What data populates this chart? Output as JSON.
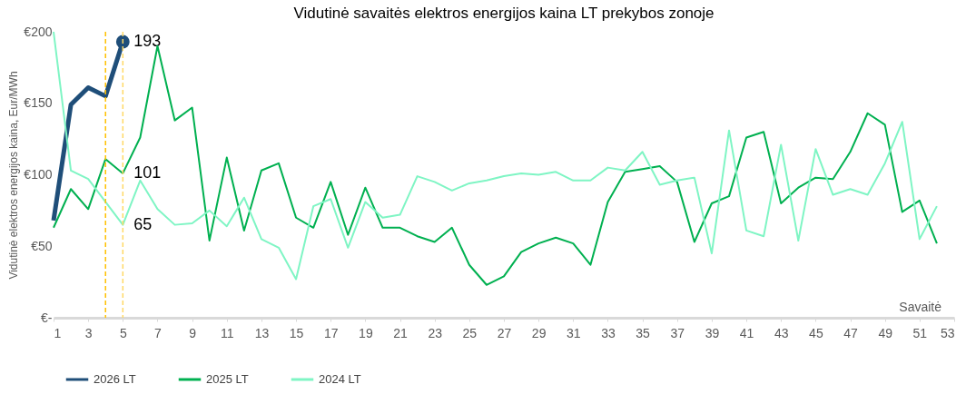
{
  "chart_data": {
    "type": "line",
    "title": "Vidutinė savaitės elektros energijos kaina LT prekybos zonoje",
    "xlabel": "Savaitė",
    "ylabel": "Vidutinė elektros energijos kaina, Eur/MWh",
    "xlim": [
      1,
      53
    ],
    "xticks": [
      1,
      3,
      5,
      7,
      9,
      11,
      13,
      15,
      17,
      19,
      21,
      23,
      25,
      27,
      29,
      31,
      33,
      35,
      37,
      39,
      41,
      43,
      45,
      47,
      49,
      51,
      53
    ],
    "ylim": [
      0,
      200
    ],
    "yticks": [
      {
        "value": 0,
        "label": "€-"
      },
      {
        "value": 50,
        "label": "€50"
      },
      {
        "value": 100,
        "label": "€100"
      },
      {
        "value": 150,
        "label": "€150"
      },
      {
        "value": 200,
        "label": "€200"
      }
    ],
    "grid": false,
    "legend": "bottom",
    "line_style": "solid",
    "ref_lines": [
      {
        "axis": "x",
        "value": 4,
        "label": null,
        "color": "#ffc000",
        "line_style": "dashed"
      },
      {
        "axis": "x",
        "value": 5,
        "label": null,
        "color": "#ffd966",
        "line_style": "dashed"
      }
    ],
    "series": [
      {
        "name": "2026 LT",
        "color": "#1f4e79",
        "marker": "none",
        "x": [
          1,
          2,
          3,
          4,
          5
        ],
        "values": [
          68,
          149,
          161,
          155,
          193
        ]
      },
      {
        "type": "scatter",
        "color": "#1f4e79",
        "marker": "circle",
        "x": [
          5
        ],
        "values": [
          193
        ],
        "value_labels": [
          "193"
        ]
      },
      {
        "name": "2025 LT",
        "color": "#00b050",
        "marker": "none",
        "x": [
          1,
          2,
          3,
          4,
          5,
          6,
          7,
          8,
          9,
          10,
          11,
          12,
          13,
          14,
          15,
          16,
          17,
          18,
          19,
          20,
          21,
          22,
          23,
          24,
          25,
          26,
          27,
          28,
          29,
          30,
          31,
          32,
          33,
          34,
          35,
          36,
          37,
          38,
          39,
          40,
          41,
          42,
          43,
          44,
          45,
          46,
          47,
          48,
          49,
          50,
          51,
          52
        ],
        "values": [
          63,
          90,
          76,
          111,
          101,
          126,
          190,
          138,
          147,
          54,
          112,
          61,
          103,
          108,
          70,
          63,
          95,
          58,
          91,
          63,
          63,
          57,
          53,
          63,
          37,
          23,
          29,
          46,
          52,
          56,
          52,
          37,
          81,
          102,
          104,
          106,
          95,
          53,
          80,
          85,
          126,
          130,
          80,
          91,
          98,
          97,
          116,
          143,
          135,
          74,
          82,
          52
        ],
        "value_labels": [
          null,
          null,
          null,
          null,
          "101",
          null,
          null,
          null,
          null,
          null,
          null,
          null,
          null,
          null,
          null,
          null,
          null,
          null,
          null,
          null,
          null,
          null,
          null,
          null,
          null,
          null,
          null,
          null,
          null,
          null,
          null,
          null,
          null,
          null,
          null,
          null,
          null,
          null,
          null,
          null,
          null,
          null,
          null,
          null,
          null,
          null,
          null,
          null,
          null,
          null,
          null,
          null
        ]
      },
      {
        "name": "2024 LT",
        "color": "#7ff5c4",
        "marker": "none",
        "x": [
          1,
          2,
          3,
          4,
          5,
          6,
          7,
          8,
          9,
          10,
          11,
          12,
          13,
          14,
          15,
          16,
          17,
          18,
          19,
          20,
          21,
          22,
          23,
          24,
          25,
          26,
          27,
          28,
          29,
          30,
          31,
          32,
          33,
          34,
          35,
          36,
          37,
          38,
          39,
          40,
          41,
          42,
          43,
          44,
          45,
          46,
          47,
          48,
          49,
          50,
          51,
          52
        ],
        "values": [
          200,
          103,
          97,
          81,
          65,
          96,
          76,
          65,
          66,
          75,
          64,
          84,
          55,
          49,
          27,
          78,
          83,
          49,
          81,
          70,
          72,
          99,
          95,
          89,
          94,
          96,
          99,
          101,
          100,
          102,
          96,
          96,
          105,
          103,
          116,
          93,
          96,
          98,
          45,
          131,
          61,
          57,
          121,
          54,
          118,
          86,
          90,
          86,
          108,
          137,
          55,
          78
        ],
        "value_labels": [
          null,
          null,
          null,
          null,
          "65",
          null,
          null,
          null,
          null,
          null,
          null,
          null,
          null,
          null,
          null,
          null,
          null,
          null,
          null,
          null,
          null,
          null,
          null,
          null,
          null,
          null,
          null,
          null,
          null,
          null,
          null,
          null,
          null,
          null,
          null,
          null,
          null,
          null,
          null,
          null,
          null,
          null,
          null,
          null,
          null,
          null,
          null,
          null,
          null,
          null,
          null,
          null
        ]
      }
    ]
  }
}
